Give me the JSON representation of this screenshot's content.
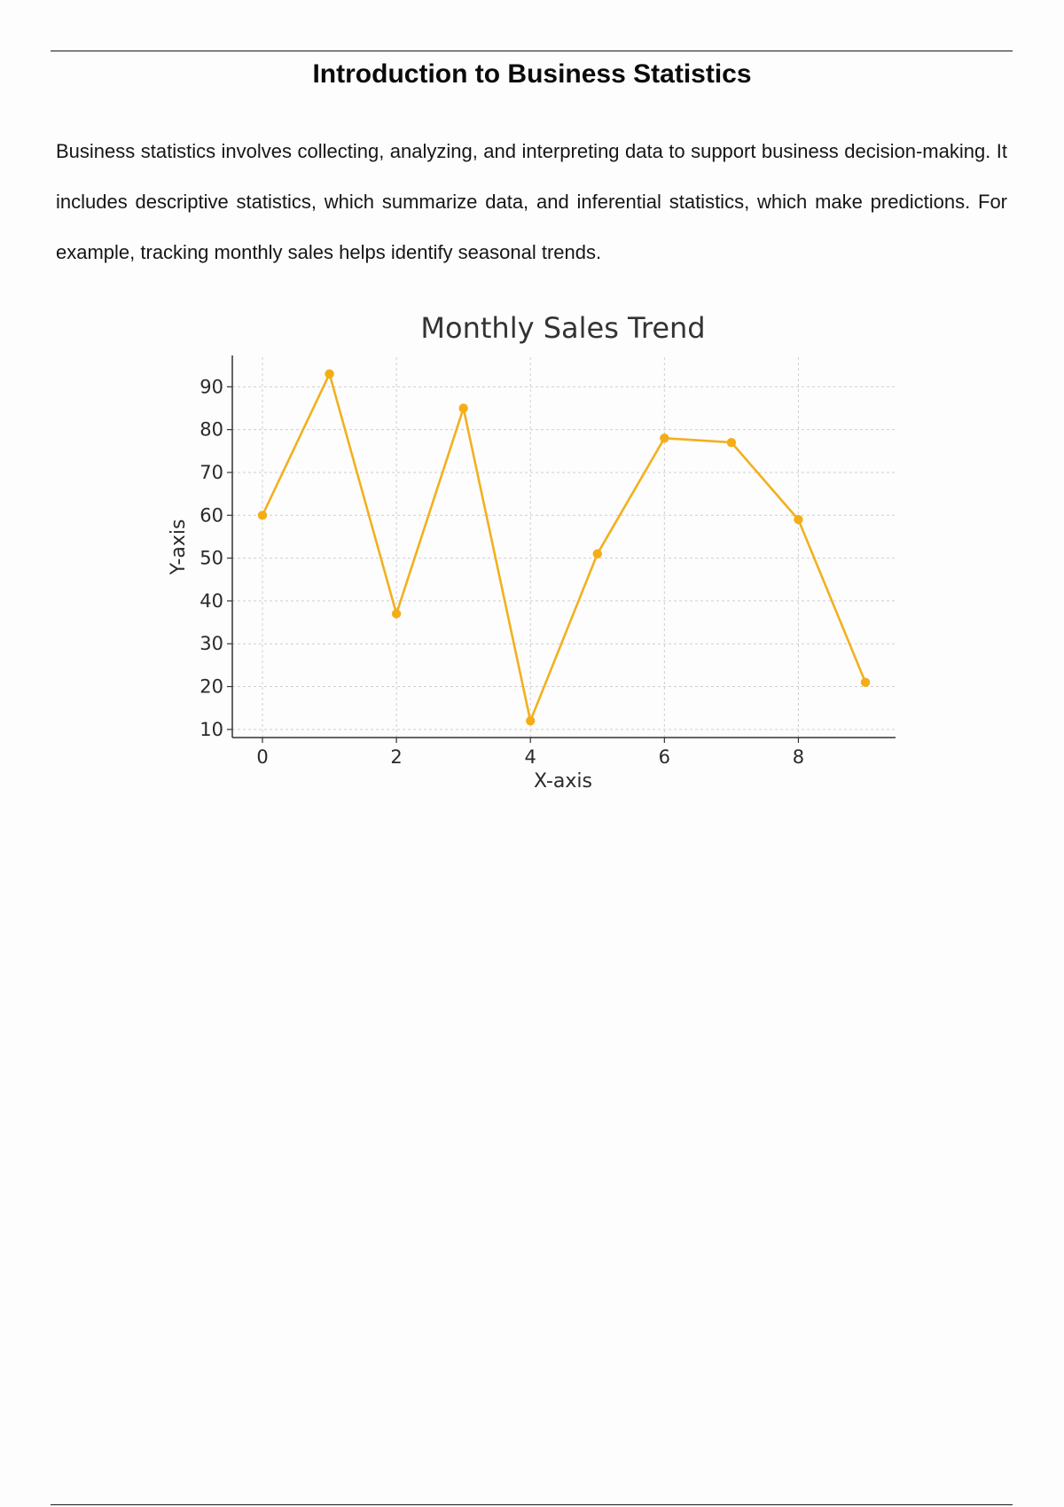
{
  "document": {
    "title": "Introduction to Business Statistics",
    "paragraph": "Business statistics involves collecting, analyzing, and interpreting data to support business decision-making. It includes descriptive statistics, which summarize data, and inferential statistics, which make predictions. For example, tracking monthly sales helps identify seasonal trends."
  },
  "chart_data": {
    "type": "line",
    "title": "Monthly Sales Trend",
    "xlabel": "X-axis",
    "ylabel": "Y-axis",
    "x": [
      0,
      1,
      2,
      3,
      4,
      5,
      6,
      7,
      8,
      9
    ],
    "y": [
      60,
      93,
      37,
      85,
      12,
      51,
      78,
      77,
      59,
      21
    ],
    "xticks": [
      0,
      2,
      4,
      6,
      8
    ],
    "yticks": [
      10,
      20,
      30,
      40,
      50,
      60,
      70,
      80,
      90
    ],
    "xlim": [
      -0.45,
      9.45
    ],
    "ylim": [
      8.1,
      96.9
    ],
    "grid": true,
    "line_color": "#f2b01e",
    "marker_color": "#f5ad17"
  }
}
